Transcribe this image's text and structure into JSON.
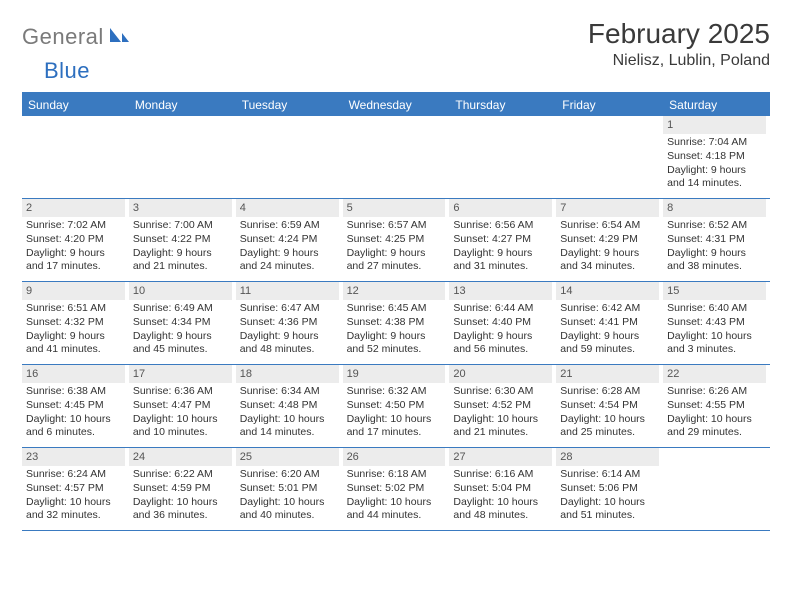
{
  "logo": {
    "general": "General",
    "blue": "Blue"
  },
  "title": "February 2025",
  "location": "Nielisz, Lublin, Poland",
  "colors": {
    "header_bg": "#3a7ac0",
    "header_text": "#ffffff",
    "daynum_bg": "#ececec",
    "text": "#333333",
    "logo_gray": "#7a7a7a",
    "logo_blue": "#2d6fbf"
  },
  "dow": [
    "Sunday",
    "Monday",
    "Tuesday",
    "Wednesday",
    "Thursday",
    "Friday",
    "Saturday"
  ],
  "weeks": [
    [
      {
        "n": "",
        "sr": "",
        "ss": "",
        "dl": ""
      },
      {
        "n": "",
        "sr": "",
        "ss": "",
        "dl": ""
      },
      {
        "n": "",
        "sr": "",
        "ss": "",
        "dl": ""
      },
      {
        "n": "",
        "sr": "",
        "ss": "",
        "dl": ""
      },
      {
        "n": "",
        "sr": "",
        "ss": "",
        "dl": ""
      },
      {
        "n": "",
        "sr": "",
        "ss": "",
        "dl": ""
      },
      {
        "n": "1",
        "sr": "Sunrise: 7:04 AM",
        "ss": "Sunset: 4:18 PM",
        "dl": "Daylight: 9 hours and 14 minutes."
      }
    ],
    [
      {
        "n": "2",
        "sr": "Sunrise: 7:02 AM",
        "ss": "Sunset: 4:20 PM",
        "dl": "Daylight: 9 hours and 17 minutes."
      },
      {
        "n": "3",
        "sr": "Sunrise: 7:00 AM",
        "ss": "Sunset: 4:22 PM",
        "dl": "Daylight: 9 hours and 21 minutes."
      },
      {
        "n": "4",
        "sr": "Sunrise: 6:59 AM",
        "ss": "Sunset: 4:24 PM",
        "dl": "Daylight: 9 hours and 24 minutes."
      },
      {
        "n": "5",
        "sr": "Sunrise: 6:57 AM",
        "ss": "Sunset: 4:25 PM",
        "dl": "Daylight: 9 hours and 27 minutes."
      },
      {
        "n": "6",
        "sr": "Sunrise: 6:56 AM",
        "ss": "Sunset: 4:27 PM",
        "dl": "Daylight: 9 hours and 31 minutes."
      },
      {
        "n": "7",
        "sr": "Sunrise: 6:54 AM",
        "ss": "Sunset: 4:29 PM",
        "dl": "Daylight: 9 hours and 34 minutes."
      },
      {
        "n": "8",
        "sr": "Sunrise: 6:52 AM",
        "ss": "Sunset: 4:31 PM",
        "dl": "Daylight: 9 hours and 38 minutes."
      }
    ],
    [
      {
        "n": "9",
        "sr": "Sunrise: 6:51 AM",
        "ss": "Sunset: 4:32 PM",
        "dl": "Daylight: 9 hours and 41 minutes."
      },
      {
        "n": "10",
        "sr": "Sunrise: 6:49 AM",
        "ss": "Sunset: 4:34 PM",
        "dl": "Daylight: 9 hours and 45 minutes."
      },
      {
        "n": "11",
        "sr": "Sunrise: 6:47 AM",
        "ss": "Sunset: 4:36 PM",
        "dl": "Daylight: 9 hours and 48 minutes."
      },
      {
        "n": "12",
        "sr": "Sunrise: 6:45 AM",
        "ss": "Sunset: 4:38 PM",
        "dl": "Daylight: 9 hours and 52 minutes."
      },
      {
        "n": "13",
        "sr": "Sunrise: 6:44 AM",
        "ss": "Sunset: 4:40 PM",
        "dl": "Daylight: 9 hours and 56 minutes."
      },
      {
        "n": "14",
        "sr": "Sunrise: 6:42 AM",
        "ss": "Sunset: 4:41 PM",
        "dl": "Daylight: 9 hours and 59 minutes."
      },
      {
        "n": "15",
        "sr": "Sunrise: 6:40 AM",
        "ss": "Sunset: 4:43 PM",
        "dl": "Daylight: 10 hours and 3 minutes."
      }
    ],
    [
      {
        "n": "16",
        "sr": "Sunrise: 6:38 AM",
        "ss": "Sunset: 4:45 PM",
        "dl": "Daylight: 10 hours and 6 minutes."
      },
      {
        "n": "17",
        "sr": "Sunrise: 6:36 AM",
        "ss": "Sunset: 4:47 PM",
        "dl": "Daylight: 10 hours and 10 minutes."
      },
      {
        "n": "18",
        "sr": "Sunrise: 6:34 AM",
        "ss": "Sunset: 4:48 PM",
        "dl": "Daylight: 10 hours and 14 minutes."
      },
      {
        "n": "19",
        "sr": "Sunrise: 6:32 AM",
        "ss": "Sunset: 4:50 PM",
        "dl": "Daylight: 10 hours and 17 minutes."
      },
      {
        "n": "20",
        "sr": "Sunrise: 6:30 AM",
        "ss": "Sunset: 4:52 PM",
        "dl": "Daylight: 10 hours and 21 minutes."
      },
      {
        "n": "21",
        "sr": "Sunrise: 6:28 AM",
        "ss": "Sunset: 4:54 PM",
        "dl": "Daylight: 10 hours and 25 minutes."
      },
      {
        "n": "22",
        "sr": "Sunrise: 6:26 AM",
        "ss": "Sunset: 4:55 PM",
        "dl": "Daylight: 10 hours and 29 minutes."
      }
    ],
    [
      {
        "n": "23",
        "sr": "Sunrise: 6:24 AM",
        "ss": "Sunset: 4:57 PM",
        "dl": "Daylight: 10 hours and 32 minutes."
      },
      {
        "n": "24",
        "sr": "Sunrise: 6:22 AM",
        "ss": "Sunset: 4:59 PM",
        "dl": "Daylight: 10 hours and 36 minutes."
      },
      {
        "n": "25",
        "sr": "Sunrise: 6:20 AM",
        "ss": "Sunset: 5:01 PM",
        "dl": "Daylight: 10 hours and 40 minutes."
      },
      {
        "n": "26",
        "sr": "Sunrise: 6:18 AM",
        "ss": "Sunset: 5:02 PM",
        "dl": "Daylight: 10 hours and 44 minutes."
      },
      {
        "n": "27",
        "sr": "Sunrise: 6:16 AM",
        "ss": "Sunset: 5:04 PM",
        "dl": "Daylight: 10 hours and 48 minutes."
      },
      {
        "n": "28",
        "sr": "Sunrise: 6:14 AM",
        "ss": "Sunset: 5:06 PM",
        "dl": "Daylight: 10 hours and 51 minutes."
      },
      {
        "n": "",
        "sr": "",
        "ss": "",
        "dl": ""
      }
    ]
  ]
}
